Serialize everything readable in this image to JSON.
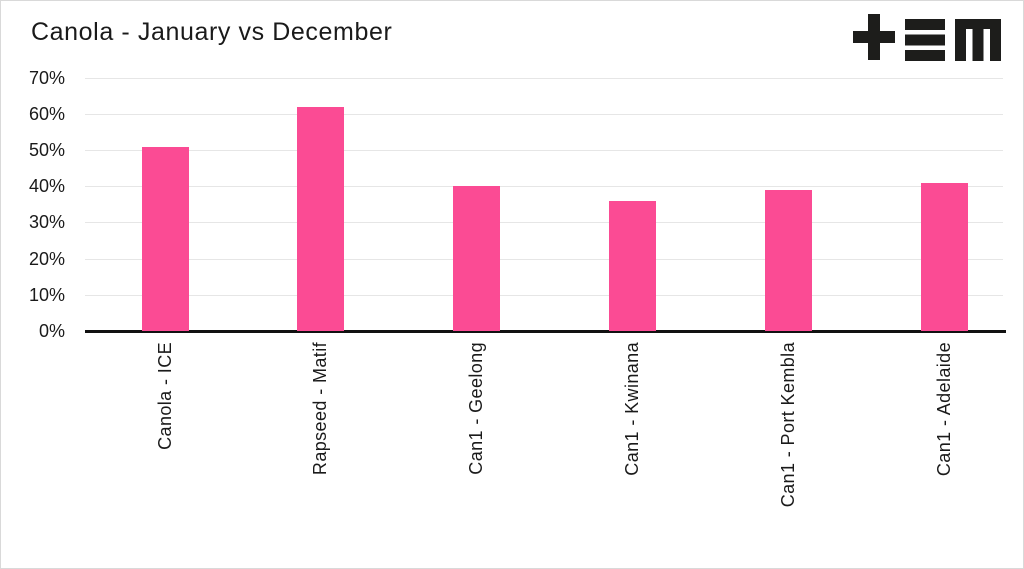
{
  "page": {
    "title": "Canola - January vs December"
  },
  "logo": {
    "name": "tem-logo",
    "glyphs": [
      "plus-glyph",
      "triple-bar-e-glyph",
      "m-glyph"
    ],
    "color": "#1d1d1b"
  },
  "colors": {
    "bar_pink": "#fb4b94",
    "gridline": "#e6e6e6",
    "axis": "#111111",
    "text": "#1a1a1a",
    "page_border": "#d9d9d9",
    "background": "#ffffff"
  },
  "chart_data": {
    "type": "bar",
    "title": "Canola - January vs December",
    "categories": [
      "Canola - ICE",
      "Rapseed - Matif",
      "Can1 - Geelong",
      "Can1 - Kwinana",
      "Can1 - Port Kembla",
      "Can1 - Adelaide"
    ],
    "values": [
      51,
      62,
      40,
      36,
      39,
      41
    ],
    "unit": "%",
    "xlabel": "",
    "ylabel": "",
    "ylim": [
      0,
      70
    ],
    "ytick_step": 10,
    "ytick_labels": [
      "0%",
      "10%",
      "20%",
      "30%",
      "40%",
      "50%",
      "60%",
      "70%"
    ],
    "grid": true,
    "legend_position": "none",
    "bar_color": "#fb4b94",
    "x_label_rotation": -90
  }
}
